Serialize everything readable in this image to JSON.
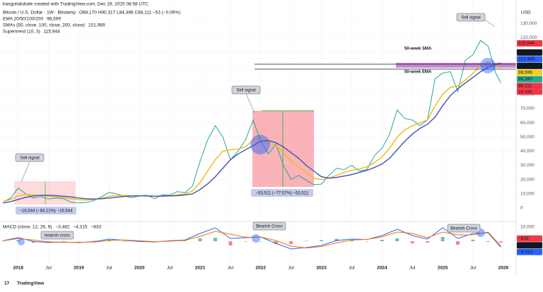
{
  "header": {
    "credit": "kanguhalubale created with TradingView.com, Dec 19, 2025 08:58 UTC"
  },
  "footer": {
    "brand": "TradingView"
  },
  "chart_data": [
    {
      "type": "line",
      "title": "Bitcoin / U.S. Dollar · 1W · Bitstamp",
      "ohlc": "O88,170 H90,317 L84,398 C88,111 −53 (−0.06%)",
      "currency": "USD",
      "legend": [
        {
          "label": "EMA 20/50/100/200",
          "value": "98,599",
          "color": "#f0b90b"
        },
        {
          "label": "SMAs (50, close, 100, close, 200, close)",
          "value": "101,989",
          "color": "#2962ff"
        },
        {
          "label": "Supertrend (10, 3)",
          "value": "115,944",
          "color": "#f23645"
        }
      ],
      "x": [
        2017.75,
        2017.875,
        2018,
        2018.125,
        2018.25,
        2018.375,
        2018.5,
        2018.625,
        2018.75,
        2018.875,
        2019,
        2019.125,
        2019.25,
        2019.375,
        2019.5,
        2019.625,
        2019.75,
        2019.875,
        2020,
        2020.125,
        2020.25,
        2020.375,
        2020.5,
        2020.625,
        2020.75,
        2020.875,
        2021,
        2021.125,
        2021.25,
        2021.375,
        2021.5,
        2021.625,
        2021.75,
        2021.875,
        2022,
        2022.125,
        2022.25,
        2022.375,
        2022.5,
        2022.625,
        2022.75,
        2022.875,
        2023,
        2023.125,
        2023.25,
        2023.375,
        2023.5,
        2023.625,
        2023.75,
        2023.875,
        2024,
        2024.125,
        2024.25,
        2024.375,
        2024.5,
        2024.625,
        2024.75,
        2024.875,
        2025,
        2025.125,
        2025.25,
        2025.375,
        2025.5,
        2025.625,
        2025.75,
        2025.875,
        2025.96
      ],
      "series": [
        {
          "color": "#26a69a",
          "values": [
            4300,
            7000,
            14000,
            10000,
            7000,
            8000,
            6400,
            7000,
            6500,
            4000,
            3600,
            3900,
            5200,
            8000,
            11000,
            10000,
            8300,
            7300,
            8500,
            9000,
            6500,
            9300,
            9200,
            11500,
            10800,
            15500,
            33000,
            48000,
            58000,
            50000,
            34000,
            40000,
            48000,
            62000,
            47000,
            38000,
            45000,
            30000,
            20000,
            23000,
            19500,
            16500,
            16800,
            23000,
            28000,
            27000,
            30000,
            26000,
            27000,
            37000,
            42000,
            52000,
            69000,
            63000,
            62000,
            58000,
            62000,
            91000,
            95000,
            96000,
            82000,
            104000,
            108000,
            118000,
            114000,
            95000,
            88111
          ]
        },
        {
          "color": "#f0b90b",
          "values": [
            4500,
            6000,
            8500,
            9500,
            9200,
            8800,
            8300,
            7800,
            7300,
            6500,
            5800,
            5600,
            6000,
            7000,
            8200,
            8800,
            8800,
            8600,
            8500,
            8600,
            8300,
            8500,
            8800,
            9300,
            10000,
            12000,
            18000,
            26000,
            34000,
            40000,
            41000,
            41500,
            43000,
            48000,
            48500,
            46000,
            44000,
            39000,
            33000,
            29000,
            25000,
            21000,
            20000,
            21000,
            23000,
            25000,
            26500,
            27500,
            29000,
            32000,
            36000,
            42000,
            50000,
            55000,
            58000,
            60000,
            62000,
            72000,
            80000,
            85000,
            86000,
            90000,
            95000,
            100000,
            103000,
            100000,
            98599
          ]
        },
        {
          "color": "#3f51b5",
          "values": [
            3500,
            4500,
            6000,
            7500,
            8500,
            9000,
            9000,
            8700,
            8300,
            7800,
            7000,
            6500,
            6300,
            6500,
            7000,
            7600,
            8200,
            8500,
            8600,
            8500,
            8300,
            8400,
            8500,
            8700,
            9200,
            10000,
            13000,
            17000,
            22000,
            28000,
            34000,
            38000,
            41000,
            44000,
            47000,
            47500,
            46000,
            43000,
            39000,
            35000,
            30000,
            26000,
            22000,
            21000,
            21500,
            22500,
            23500,
            25000,
            26500,
            28500,
            31000,
            35000,
            41000,
            47000,
            52000,
            56000,
            59000,
            64000,
            72000,
            79000,
            84000,
            88000,
            92000,
            96000,
            99000,
            101000,
            101989
          ]
        }
      ],
      "xlim": [
        2017.7,
        2026.2
      ],
      "xticks": [
        2018,
        {
          "value": 2018.5,
          "label": "Jul"
        },
        2019,
        {
          "value": 2019.5,
          "label": "Jul"
        },
        2020,
        {
          "value": 2020.5,
          "label": "Jul"
        },
        2021,
        {
          "value": 2021.5,
          "label": "Jul"
        },
        2022,
        {
          "value": 2022.5,
          "label": "Jul"
        },
        2023,
        {
          "value": 2023.5,
          "label": "Jul"
        },
        2024,
        {
          "value": 2024.5,
          "label": "Jul"
        },
        2025,
        {
          "value": 2025.5,
          "label": "Jul"
        },
        2026
      ],
      "ylim": [
        -8000,
        142000
      ],
      "yticks": [
        0,
        {
          "value": 10000,
          "label": "10,000"
        },
        {
          "value": 20000,
          "label": "20,000"
        },
        {
          "value": 30000,
          "label": "30,000"
        },
        {
          "value": 40000,
          "label": "40,000"
        },
        {
          "value": 50000,
          "label": "50,000"
        },
        {
          "value": 60000,
          "label": "60,000"
        },
        {
          "value": 70000,
          "label": "70,000"
        },
        {
          "value": 80000,
          "label": "80,000"
        },
        {
          "value": 90000,
          "label": "90,000"
        },
        {
          "value": 100000,
          "label": "100,000"
        },
        {
          "value": 110000,
          "label": "110,000"
        },
        {
          "value": 120000,
          "label": "120,000"
        },
        {
          "value": 130000,
          "label": "130,000"
        }
      ],
      "grid": true,
      "axis_labels": [
        {
          "value": 115944,
          "label": "115,944",
          "color": "#f23645",
          "text_color": "#ffffff"
        },
        {
          "value": 102548,
          "label": "102,548",
          "color": "#131722",
          "text_color": "#ffffff"
        },
        {
          "value": 101989,
          "label": "101,989",
          "color": "#2962ff",
          "text_color": "#ffffff"
        },
        {
          "value": 98752,
          "label": "98,752",
          "color": "#131722",
          "text_color": "#ffffff"
        },
        {
          "value": 98599,
          "label": "98,599",
          "color": "#f0d020",
          "text_color": "#131722"
        },
        {
          "value": 96280,
          "label": "96,280",
          "color": "#22ab94",
          "text_color": "#ffffff"
        },
        {
          "value": 88111,
          "label": "88,111",
          "color": "#f23645",
          "text_color": "#ffffff"
        }
      ],
      "countdown": "2d 16h",
      "annotations": [
        "Sell signal",
        "Sell signal",
        "Sell signal",
        "50-week SMA",
        "50-week EMA",
        "−16,544 (−84.12%) −16,544",
        "−53,521 (−77.57%) −53,521"
      ]
    },
    {
      "type": "macd",
      "legend": {
        "label": "MACD (close, 12, 26, 9)",
        "values": [
          {
            "text": "−3,482",
            "color": "#ef9a9a"
          },
          {
            "text": "−4,315",
            "color": "#2962ff"
          },
          {
            "text": "−833",
            "color": "#ff6d00"
          }
        ]
      },
      "x": [
        2017.75,
        2018,
        2018.25,
        2018.5,
        2018.75,
        2019,
        2019.25,
        2019.5,
        2019.75,
        2020,
        2020.25,
        2020.5,
        2020.75,
        2021,
        2021.25,
        2021.5,
        2021.75,
        2022,
        2022.25,
        2022.5,
        2022.75,
        2023,
        2023.25,
        2023.5,
        2023.75,
        2024,
        2024.25,
        2024.5,
        2024.75,
        2025,
        2025.25,
        2025.5,
        2025.75,
        2025.96
      ],
      "histogram": {
        "up_color": "#26a69a",
        "down_color": "#ef5350",
        "values": [
          100,
          800,
          -1100,
          -400,
          100,
          -200,
          300,
          1000,
          -300,
          -500,
          -200,
          300,
          300,
          2000,
          2500,
          -3000,
          -300,
          0,
          -2000,
          -2000,
          300,
          800,
          1700,
          700,
          -100,
          1000,
          2000,
          -1500,
          -1000,
          3000,
          -2500,
          1000,
          -500,
          -833
        ]
      },
      "series": [
        {
          "color": "#2962ff",
          "values": [
            400,
            2600,
            -200,
            -900,
            -600,
            -1000,
            -300,
            1500,
            600,
            -200,
            -500,
            300,
            900,
            5500,
            9500,
            2000,
            2500,
            3000,
            -1500,
            -5500,
            -4500,
            -3000,
            500,
            1500,
            1200,
            4000,
            8500,
            4000,
            1500,
            9500,
            2000,
            5500,
            6000,
            -4315
          ]
        },
        {
          "color": "#ff6d00",
          "values": [
            300,
            1800,
            900,
            -500,
            -700,
            -800,
            -600,
            500,
            900,
            300,
            -300,
            0,
            600,
            3500,
            7000,
            5000,
            2800,
            3000,
            500,
            -3500,
            -4800,
            -3800,
            -1200,
            800,
            1300,
            3000,
            6500,
            5500,
            2500,
            6500,
            4500,
            4500,
            6500,
            -3482
          ]
        }
      ],
      "ylim": [
        -16000,
        13000
      ],
      "yticks": [
        {
          "value": 10000,
          "label": "10,000"
        }
      ],
      "axis_labels": [
        {
          "value": -833,
          "label": "−833",
          "color": "#f23645",
          "text_color": "#ffffff"
        },
        {
          "value": -3482,
          "label": "−3,482",
          "color": "#131722",
          "text_color": "#ffffff"
        },
        {
          "value": -4315,
          "label": "−4,315",
          "color": "#2962ff",
          "text_color": "#ffffff"
        }
      ],
      "annotations": [
        "bearish cross",
        "Bearish Cross",
        "Bearish Cross"
      ]
    }
  ]
}
